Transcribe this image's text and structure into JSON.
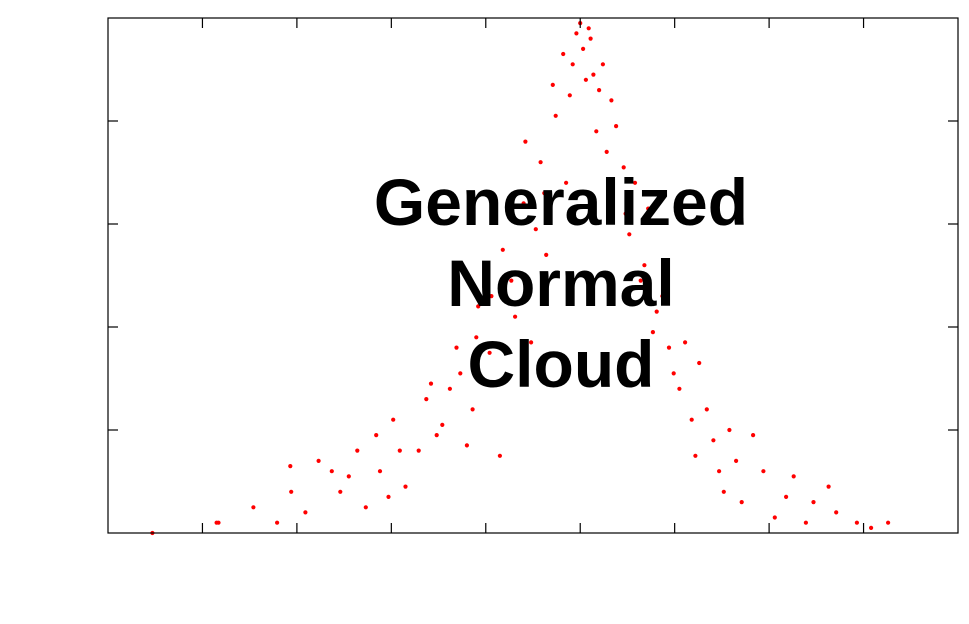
{
  "chart_data": {
    "type": "scatter",
    "title": "",
    "xlabel": "",
    "ylabel": "",
    "annotation_lines": [
      "Generalized",
      "Normal",
      "Cloud"
    ],
    "xlim": [
      -5,
      4
    ],
    "ylim": [
      0,
      1
    ],
    "x_tick_count": 8,
    "y_tick_count": 4,
    "grid": false,
    "point_color": "#ff0000",
    "axis_color": "#000000",
    "text_color": "#000000",
    "series": [
      {
        "points": [
          [
            -4.53,
            0.0
          ],
          [
            -3.83,
            0.02
          ],
          [
            -3.46,
            0.05
          ],
          [
            -3.21,
            0.02
          ],
          [
            -3.07,
            0.13
          ],
          [
            -2.91,
            0.04
          ],
          [
            -2.63,
            0.12
          ],
          [
            -2.45,
            0.11
          ],
          [
            -2.27,
            0.05
          ],
          [
            -2.16,
            0.19
          ],
          [
            -2.03,
            0.07
          ],
          [
            -1.91,
            0.16
          ],
          [
            -1.85,
            0.09
          ],
          [
            -1.63,
            0.26
          ],
          [
            -1.52,
            0.19
          ],
          [
            -1.38,
            0.28
          ],
          [
            -1.27,
            0.31
          ],
          [
            -1.14,
            0.24
          ],
          [
            -1.08,
            0.44
          ],
          [
            -0.96,
            0.35
          ],
          [
            -0.85,
            0.15
          ],
          [
            -0.73,
            0.49
          ],
          [
            -0.6,
            0.64
          ],
          [
            -0.52,
            0.37
          ],
          [
            -0.42,
            0.72
          ],
          [
            -0.36,
            0.54
          ],
          [
            -0.26,
            0.81
          ],
          [
            -0.15,
            0.68
          ],
          [
            -0.08,
            0.91
          ],
          [
            0.0,
            0.99
          ],
          [
            0.06,
            0.88
          ],
          [
            0.11,
            0.96
          ],
          [
            0.17,
            0.78
          ],
          [
            0.24,
            0.91
          ],
          [
            0.33,
            0.84
          ],
          [
            0.46,
            0.71
          ],
          [
            0.52,
            0.58
          ],
          [
            0.64,
            0.49
          ],
          [
            0.72,
            0.63
          ],
          [
            0.81,
            0.43
          ],
          [
            0.94,
            0.36
          ],
          [
            1.05,
            0.28
          ],
          [
            1.18,
            0.22
          ],
          [
            1.26,
            0.33
          ],
          [
            1.41,
            0.18
          ],
          [
            1.52,
            0.08
          ],
          [
            1.65,
            0.14
          ],
          [
            1.83,
            0.19
          ],
          [
            2.06,
            0.03
          ],
          [
            2.26,
            0.11
          ],
          [
            2.47,
            0.06
          ],
          [
            2.63,
            0.09
          ],
          [
            2.93,
            0.02
          ],
          [
            3.26,
            0.02
          ],
          [
            -3.85,
            0.02
          ],
          [
            -3.06,
            0.08
          ],
          [
            -2.77,
            0.14
          ],
          [
            -2.54,
            0.08
          ],
          [
            -2.36,
            0.16
          ],
          [
            -2.12,
            0.12
          ],
          [
            -1.98,
            0.22
          ],
          [
            -1.71,
            0.16
          ],
          [
            -1.58,
            0.29
          ],
          [
            -1.46,
            0.21
          ],
          [
            -1.31,
            0.36
          ],
          [
            -1.2,
            0.17
          ],
          [
            -1.1,
            0.38
          ],
          [
            -0.94,
            0.46
          ],
          [
            -0.82,
            0.55
          ],
          [
            -0.69,
            0.42
          ],
          [
            -0.58,
            0.76
          ],
          [
            -0.47,
            0.59
          ],
          [
            -0.38,
            0.66
          ],
          [
            -0.29,
            0.87
          ],
          [
            -0.18,
            0.93
          ],
          [
            -0.11,
            0.85
          ],
          [
            -0.04,
            0.97
          ],
          [
            0.03,
            0.94
          ],
          [
            0.09,
            0.98
          ],
          [
            0.14,
            0.89
          ],
          [
            0.2,
            0.86
          ],
          [
            0.28,
            0.74
          ],
          [
            0.38,
            0.79
          ],
          [
            0.48,
            0.62
          ],
          [
            0.58,
            0.68
          ],
          [
            0.68,
            0.52
          ],
          [
            0.77,
            0.39
          ],
          [
            0.87,
            0.46
          ],
          [
            0.99,
            0.31
          ],
          [
            1.11,
            0.37
          ],
          [
            1.22,
            0.15
          ],
          [
            1.34,
            0.24
          ],
          [
            1.47,
            0.12
          ],
          [
            1.58,
            0.2
          ],
          [
            1.71,
            0.06
          ],
          [
            1.94,
            0.12
          ],
          [
            2.18,
            0.07
          ],
          [
            2.39,
            0.02
          ],
          [
            2.71,
            0.04
          ],
          [
            3.08,
            0.01
          ]
        ]
      }
    ]
  }
}
